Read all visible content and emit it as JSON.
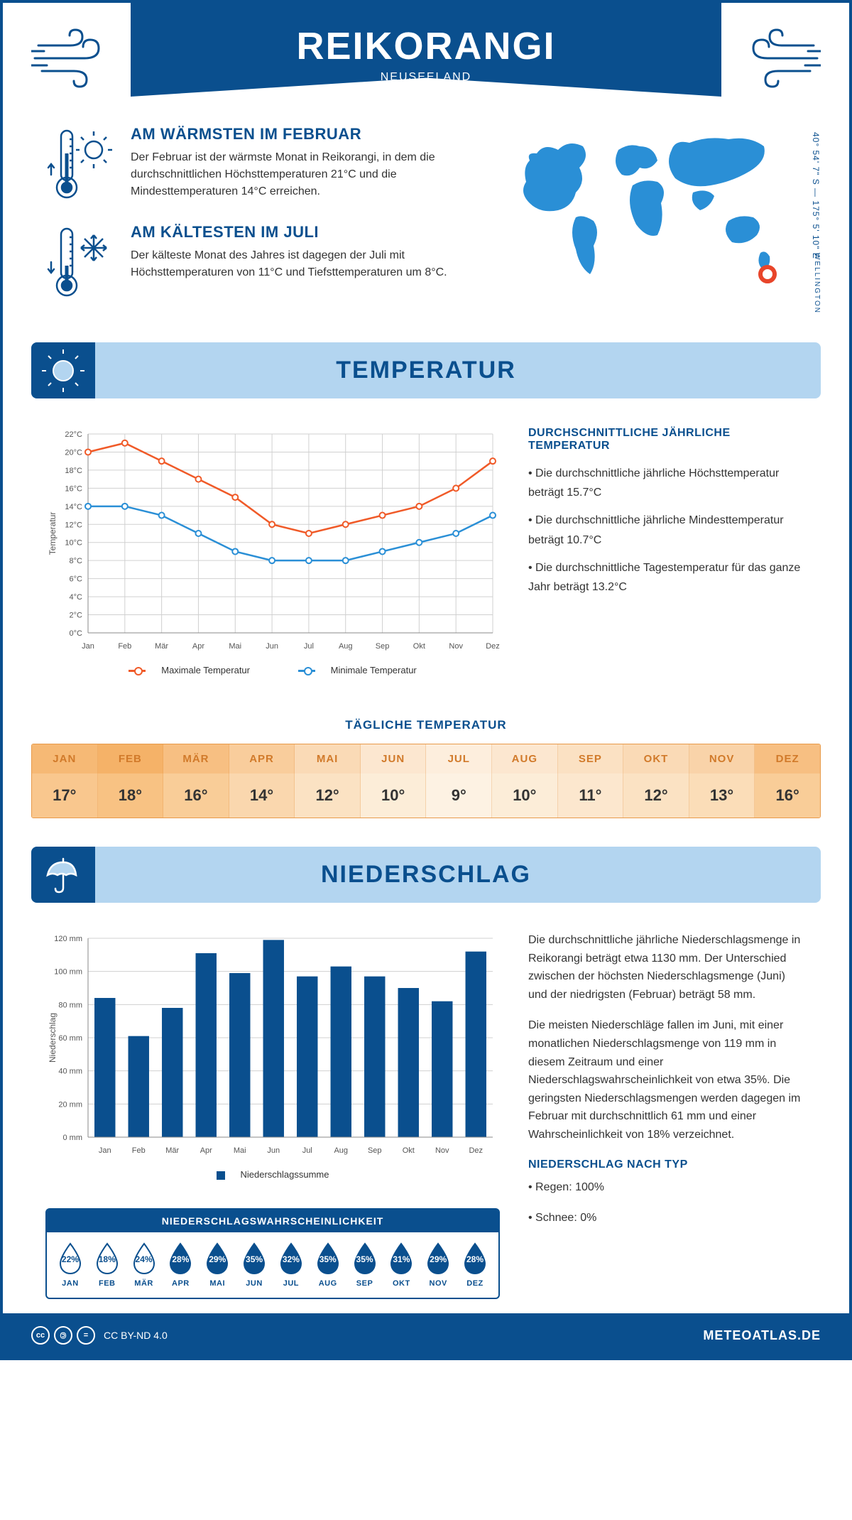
{
  "header": {
    "title": "REIKORANGI",
    "subtitle": "NEUSEELAND"
  },
  "location": {
    "coords": "40° 54' 7\" S — 175° 5' 10\" E",
    "region": "WELLINGTON",
    "marker_color": "#e8452a"
  },
  "facts": {
    "warm": {
      "title": "AM WÄRMSTEN IM FEBRUAR",
      "text": "Der Februar ist der wärmste Monat in Reikorangi, in dem die durchschnittlichen Höchsttemperaturen 21°C und die Mindesttemperaturen 14°C erreichen."
    },
    "cold": {
      "title": "AM KÄLTESTEN IM JULI",
      "text": "Der kälteste Monat des Jahres ist dagegen der Juli mit Höchsttemperaturen von 11°C und Tiefsttemperaturen um 8°C."
    }
  },
  "temp_section": {
    "title": "TEMPERATUR",
    "info_title": "DURCHSCHNITTLICHE JÄHRLICHE TEMPERATUR",
    "bullet1": "• Die durchschnittliche jährliche Höchsttemperatur beträgt 15.7°C",
    "bullet2": "• Die durchschnittliche jährliche Mindesttemperatur beträgt 10.7°C",
    "bullet3": "• Die durchschnittliche Tagestemperatur für das ganze Jahr beträgt 13.2°C",
    "legend_max": "Maximale Temperatur",
    "legend_min": "Minimale Temperatur",
    "chart": {
      "months": [
        "Jan",
        "Feb",
        "Mär",
        "Apr",
        "Mai",
        "Jun",
        "Jul",
        "Aug",
        "Sep",
        "Okt",
        "Nov",
        "Dez"
      ],
      "max": [
        20,
        21,
        19,
        17,
        15,
        12,
        11,
        12,
        13,
        14,
        16,
        19
      ],
      "min": [
        14,
        14,
        13,
        11,
        9,
        8,
        8,
        8,
        9,
        10,
        11,
        13
      ],
      "ylim": [
        0,
        22
      ],
      "ytick_step": 2,
      "max_color": "#f05a28",
      "min_color": "#2a8fd6",
      "grid_color": "#d0d0d0",
      "axis_color": "#888",
      "ylabel": "Temperatur"
    }
  },
  "daily": {
    "title": "TÄGLICHE TEMPERATUR",
    "months": [
      "JAN",
      "FEB",
      "MÄR",
      "APR",
      "MAI",
      "JUN",
      "JUL",
      "AUG",
      "SEP",
      "OKT",
      "NOV",
      "DEZ"
    ],
    "values": [
      "17°",
      "18°",
      "16°",
      "14°",
      "12°",
      "10°",
      "9°",
      "10°",
      "11°",
      "12°",
      "13°",
      "16°"
    ],
    "raw": [
      17,
      18,
      16,
      14,
      12,
      10,
      9,
      10,
      11,
      12,
      13,
      16
    ],
    "col_min": "#fdeedd",
    "col_max": "#f5b268",
    "val_min": "#fdf2e3",
    "val_max": "#f8c283",
    "border_color": "#e89a4a",
    "header_text": "#d17a2a"
  },
  "precip_section": {
    "title": "NIEDERSCHLAG",
    "para1": "Die durchschnittliche jährliche Niederschlagsmenge in Reikorangi beträgt etwa 1130 mm. Der Unterschied zwischen der höchsten Niederschlagsmenge (Juni) und der niedrigsten (Februar) beträgt 58 mm.",
    "para2": "Die meisten Niederschläge fallen im Juni, mit einer monatlichen Niederschlagsmenge von 119 mm in diesem Zeitraum und einer Niederschlagswahrscheinlichkeit von etwa 35%. Die geringsten Niederschlagsmengen werden dagegen im Februar mit durchschnittlich 61 mm und einer Wahrscheinlichkeit von 18% verzeichnet.",
    "type_title": "NIEDERSCHLAG NACH TYP",
    "type1": "• Regen: 100%",
    "type2": "• Schnee: 0%",
    "chart": {
      "months": [
        "Jan",
        "Feb",
        "Mär",
        "Apr",
        "Mai",
        "Jun",
        "Jul",
        "Aug",
        "Sep",
        "Okt",
        "Nov",
        "Dez"
      ],
      "values": [
        84,
        61,
        78,
        111,
        99,
        119,
        97,
        103,
        97,
        90,
        82,
        112
      ],
      "ylim": [
        0,
        120
      ],
      "ytick_step": 20,
      "bar_color": "#0a4f8e",
      "grid_color": "#d0d0d0",
      "ylabel": "Niederschlag",
      "legend_label": "Niederschlagssumme"
    },
    "prob": {
      "title": "NIEDERSCHLAGSWAHRSCHEINLICHKEIT",
      "months": [
        "JAN",
        "FEB",
        "MÄR",
        "APR",
        "MAI",
        "JUN",
        "JUL",
        "AUG",
        "SEP",
        "OKT",
        "NOV",
        "DEZ"
      ],
      "values": [
        22,
        18,
        24,
        28,
        29,
        35,
        32,
        35,
        35,
        31,
        29,
        28
      ],
      "empty_threshold": 25,
      "fill_color": "#0a4f8e",
      "empty_stroke": "#0a4f8e"
    }
  },
  "footer": {
    "license": "CC BY-ND 4.0",
    "site": "METEOATLAS.DE"
  },
  "colors": {
    "brand": "#0a4f8e",
    "light_blue": "#b3d5f0",
    "map_blue": "#2a8fd6"
  }
}
